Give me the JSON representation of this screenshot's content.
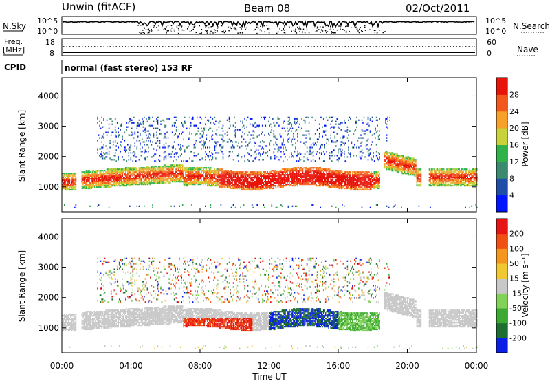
{
  "header": {
    "radar": "Unwin (fitACF)",
    "beam": "Beam 08",
    "date": "02/Oct/2011"
  },
  "top_panels": {
    "nsky_label": "N.Sky",
    "nsearch_label": "N.Search",
    "nsky_ticks": [
      "10^5",
      "10^0"
    ],
    "nsearch_ticks": [
      "10^5",
      "10^0"
    ],
    "freq_label_1": "Freq.",
    "freq_label_2": "[MHz]",
    "freq_ticks": [
      "18",
      "8"
    ],
    "nave_label": "Nave",
    "nave_ticks": [
      "60",
      "0"
    ],
    "cpid_label": "CPID",
    "cpid_value": "normal (fast stereo) 153 RF"
  },
  "chart_data": [
    {
      "type": "heatmap",
      "name": "power",
      "ylabel": "Slant Range [km]",
      "ylim": [
        180,
        4600
      ],
      "yticks": [
        "1000",
        "2000",
        "3000",
        "4000"
      ],
      "xlim": [
        0,
        24
      ],
      "colorbar": {
        "label": "Power [dB]",
        "ticks": [
          "4",
          "8",
          "12",
          "16",
          "20",
          "24",
          "28"
        ],
        "colors": [
          "#0014ff",
          "#1f4ea8",
          "#3b8a6f",
          "#2fb24a",
          "#c8d23a",
          "#f7a12a",
          "#f2581c",
          "#e8140a"
        ]
      }
    },
    {
      "type": "heatmap",
      "name": "velocity",
      "ylabel": "Slant Range [km]",
      "ylim": [
        180,
        4600
      ],
      "yticks": [
        "1000",
        "2000",
        "3000",
        "4000"
      ],
      "xlim": [
        0,
        24
      ],
      "xlabel": "Time UT",
      "xticks": [
        "00:00",
        "04:00",
        "08:00",
        "12:00",
        "16:00",
        "20:00",
        "00:00"
      ],
      "colorbar": {
        "label": "Velocity [m s⁻¹]",
        "ticks": [
          "200",
          "100",
          "50",
          "15",
          "-15",
          "-50",
          "-100",
          "-200"
        ],
        "colors": [
          "#0a1ee6",
          "#1e6e32",
          "#3caa32",
          "#82d25a",
          "#c8c8c8",
          "#f0c832",
          "#f5961e",
          "#f05014",
          "#e61414"
        ]
      }
    }
  ]
}
